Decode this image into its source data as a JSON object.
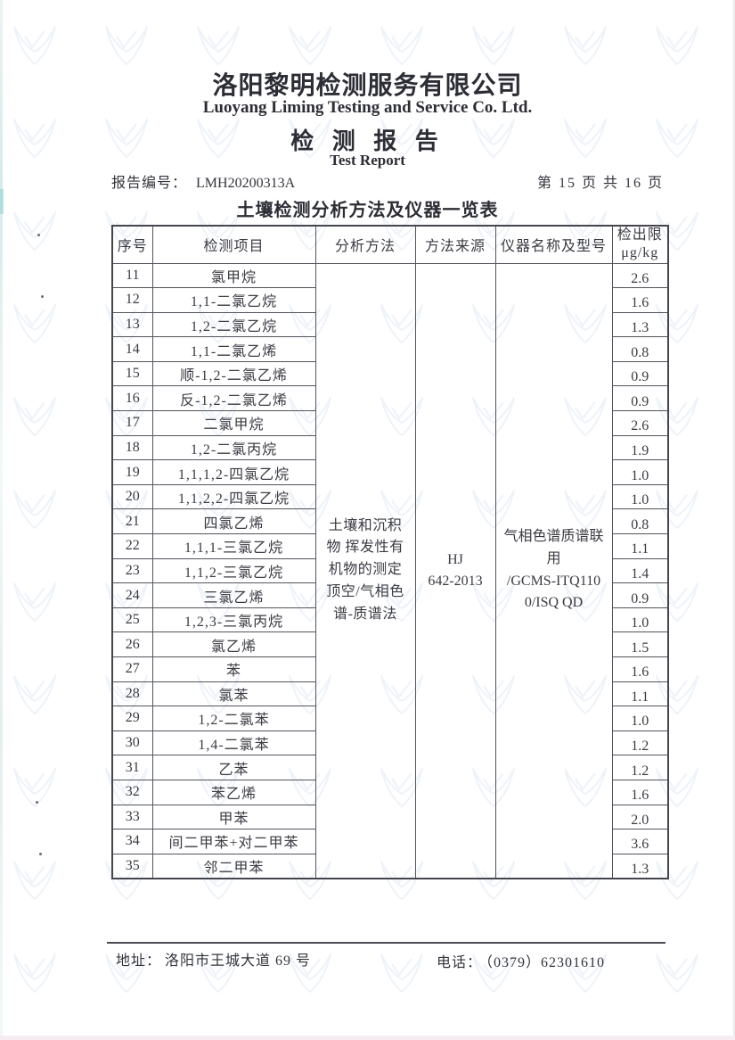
{
  "header": {
    "company_cn": "洛阳黎明检测服务有限公司",
    "company_en": "Luoyang Liming Testing and Service Co. Ltd.",
    "report_title_cn": "检 测 报 告",
    "report_title_en": "Test Report",
    "report_no_label": "报告编号：",
    "report_no_value": "LMH20200313A",
    "page_indicator": "第 15 页 共 16 页"
  },
  "table": {
    "title": "土壤检测分析方法及仪器一览表",
    "columns": {
      "no": "序号",
      "item": "检测项目",
      "method": "分析方法",
      "source": "方法来源",
      "instrument": "仪器名称及型号",
      "limit_line1": "检出限",
      "limit_line2": "μg/kg"
    },
    "analysis_method": "土壤和沉积\n物 挥发性有\n机物的测定\n顶空/气相色\n谱-质谱法",
    "method_source": "HJ\n642-2013",
    "instrument": "气相色谱质谱联\n用\n/GCMS-ITQ110\n0/ISQ QD",
    "rows": [
      {
        "no": "11",
        "item": "氯甲烷",
        "limit": "2.6"
      },
      {
        "no": "12",
        "item": "1,1-二氯乙烷",
        "limit": "1.6"
      },
      {
        "no": "13",
        "item": "1,2-二氯乙烷",
        "limit": "1.3"
      },
      {
        "no": "14",
        "item": "1,1-二氯乙烯",
        "limit": "0.8"
      },
      {
        "no": "15",
        "item": "顺-1,2-二氯乙烯",
        "limit": "0.9"
      },
      {
        "no": "16",
        "item": "反-1,2-二氯乙烯",
        "limit": "0.9"
      },
      {
        "no": "17",
        "item": "二氯甲烷",
        "limit": "2.6"
      },
      {
        "no": "18",
        "item": "1,2-二氯丙烷",
        "limit": "1.9"
      },
      {
        "no": "19",
        "item": "1,1,1,2-四氯乙烷",
        "limit": "1.0"
      },
      {
        "no": "20",
        "item": "1,1,2,2-四氯乙烷",
        "limit": "1.0"
      },
      {
        "no": "21",
        "item": "四氯乙烯",
        "limit": "0.8"
      },
      {
        "no": "22",
        "item": "1,1,1-三氯乙烷",
        "limit": "1.1"
      },
      {
        "no": "23",
        "item": "1,1,2-三氯乙烷",
        "limit": "1.4"
      },
      {
        "no": "24",
        "item": "三氯乙烯",
        "limit": "0.9"
      },
      {
        "no": "25",
        "item": "1,2,3-三氯丙烷",
        "limit": "1.0"
      },
      {
        "no": "26",
        "item": "氯乙烯",
        "limit": "1.5"
      },
      {
        "no": "27",
        "item": "苯",
        "limit": "1.6"
      },
      {
        "no": "28",
        "item": "氯苯",
        "limit": "1.1"
      },
      {
        "no": "29",
        "item": "1,2-二氯苯",
        "limit": "1.0"
      },
      {
        "no": "30",
        "item": "1,4-二氯苯",
        "limit": "1.2"
      },
      {
        "no": "31",
        "item": "乙苯",
        "limit": "1.2"
      },
      {
        "no": "32",
        "item": "苯乙烯",
        "limit": "1.6"
      },
      {
        "no": "33",
        "item": "甲苯",
        "limit": "2.0"
      },
      {
        "no": "34",
        "item": "间二甲苯+对二甲苯",
        "limit": "3.6"
      },
      {
        "no": "35",
        "item": "邻二甲苯",
        "limit": "1.3"
      }
    ]
  },
  "footer": {
    "address_label": "地址：",
    "address_value": "洛阳市王城大道 69 号",
    "phone_label": "电话：",
    "phone_value": "（0379）62301610"
  },
  "colors": {
    "text": "#33343c",
    "border": "#53545c",
    "watermark": "#bcd0e8"
  }
}
